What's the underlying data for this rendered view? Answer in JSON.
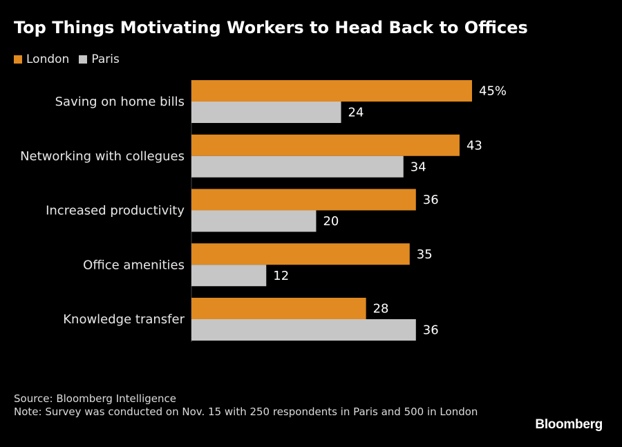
{
  "title": "Top Things Motivating Workers to Head Back to Offices",
  "legend": {
    "london": "London",
    "paris": "Paris"
  },
  "colors": {
    "london": "#e08a21",
    "paris": "#c6c6c6",
    "background": "#000000"
  },
  "chart_data": {
    "type": "bar",
    "orientation": "horizontal",
    "title": "Top Things Motivating Workers to Head Back to Offices",
    "categories": [
      "Saving on home bills",
      "Networking with collegues",
      "Increased productivity",
      "Office amenities",
      "Knowledge transfer"
    ],
    "series": [
      {
        "name": "London",
        "values": [
          45,
          43,
          36,
          35,
          28
        ]
      },
      {
        "name": "Paris",
        "values": [
          24,
          34,
          20,
          12,
          36
        ]
      }
    ],
    "data_labels": [
      [
        "45%",
        "43",
        "36",
        "35",
        "28"
      ],
      [
        "24",
        "34",
        "20",
        "12",
        "36"
      ]
    ],
    "xlim": [
      0,
      45
    ],
    "grid": false,
    "legend_position": "top-left"
  },
  "footer": {
    "source": "Source: Bloomberg Intelligence",
    "note": "Note: Survey was conducted on Nov. 15 with 250 respondents in Paris and 500 in London",
    "brand": "Bloomberg"
  }
}
